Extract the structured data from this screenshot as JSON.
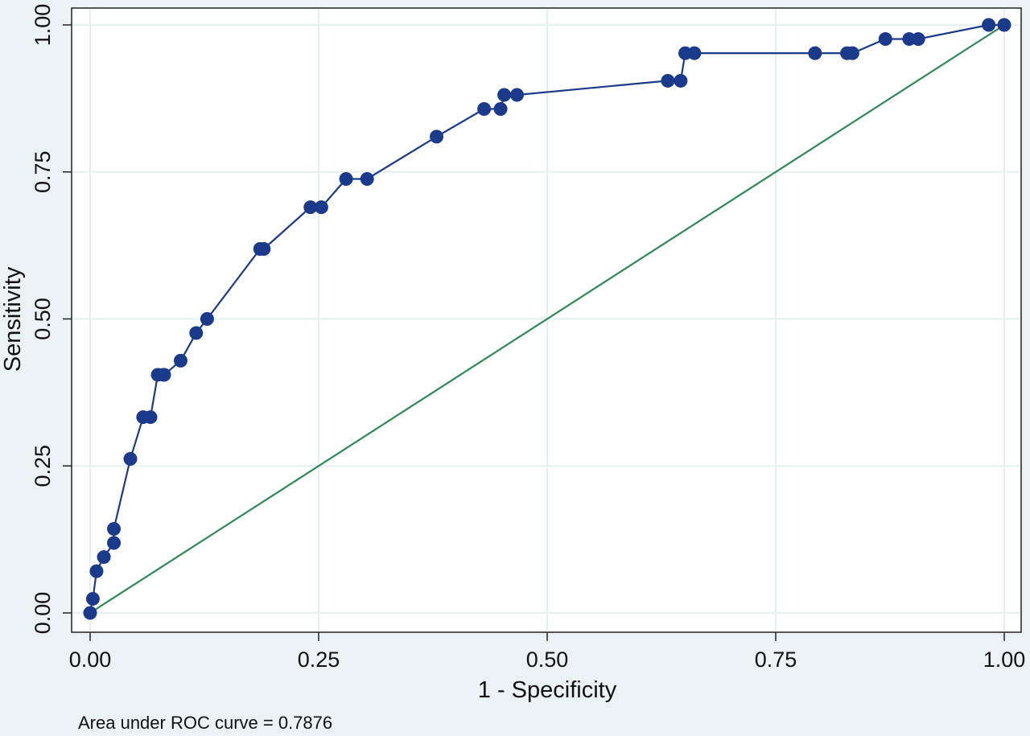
{
  "chart_data": {
    "type": "line",
    "xlabel": "1 - Specificity",
    "ylabel": "Sensitivity",
    "xlim": [
      0,
      1
    ],
    "ylim": [
      0,
      1
    ],
    "x_ticks": [
      "0.00",
      "0.25",
      "0.50",
      "0.75",
      "1.00"
    ],
    "y_ticks": [
      "0.00",
      "0.25",
      "0.50",
      "0.75",
      "1.00"
    ],
    "grid": true,
    "note": "Area under ROC curve = 0.7876",
    "colors": {
      "background": "#eaf2f3",
      "plot_area": "#ffffff",
      "grid": "#e6f0f0",
      "roc": "#1c3a8c",
      "reference": "#2d8a57"
    },
    "series": [
      {
        "type": "line+markers",
        "color": "#1c3a8c",
        "points": [
          [
            0.0,
            0.0
          ],
          [
            0.003,
            0.024
          ],
          [
            0.007,
            0.071
          ],
          [
            0.015,
            0.095
          ],
          [
            0.026,
            0.119
          ],
          [
            0.026,
            0.143
          ],
          [
            0.044,
            0.262
          ],
          [
            0.058,
            0.333
          ],
          [
            0.066,
            0.333
          ],
          [
            0.074,
            0.405
          ],
          [
            0.08,
            0.405
          ],
          [
            0.081,
            0.405
          ],
          [
            0.099,
            0.429
          ],
          [
            0.116,
            0.476
          ],
          [
            0.128,
            0.5
          ],
          [
            0.186,
            0.619
          ],
          [
            0.19,
            0.619
          ],
          [
            0.241,
            0.69
          ],
          [
            0.253,
            0.69
          ],
          [
            0.28,
            0.738
          ],
          [
            0.303,
            0.738
          ],
          [
            0.379,
            0.81
          ],
          [
            0.431,
            0.857
          ],
          [
            0.449,
            0.857
          ],
          [
            0.453,
            0.881
          ],
          [
            0.467,
            0.881
          ],
          [
            0.632,
            0.905
          ],
          [
            0.646,
            0.905
          ],
          [
            0.651,
            0.952
          ],
          [
            0.661,
            0.952
          ],
          [
            0.793,
            0.952
          ],
          [
            0.828,
            0.952
          ],
          [
            0.834,
            0.952
          ],
          [
            0.87,
            0.976
          ],
          [
            0.896,
            0.976
          ],
          [
            0.906,
            0.976
          ],
          [
            0.983,
            1.0
          ],
          [
            1.0,
            1.0
          ]
        ]
      },
      {
        "type": "line",
        "color": "#2d8a57",
        "points": [
          [
            0,
            0
          ],
          [
            1,
            1
          ]
        ]
      }
    ]
  }
}
